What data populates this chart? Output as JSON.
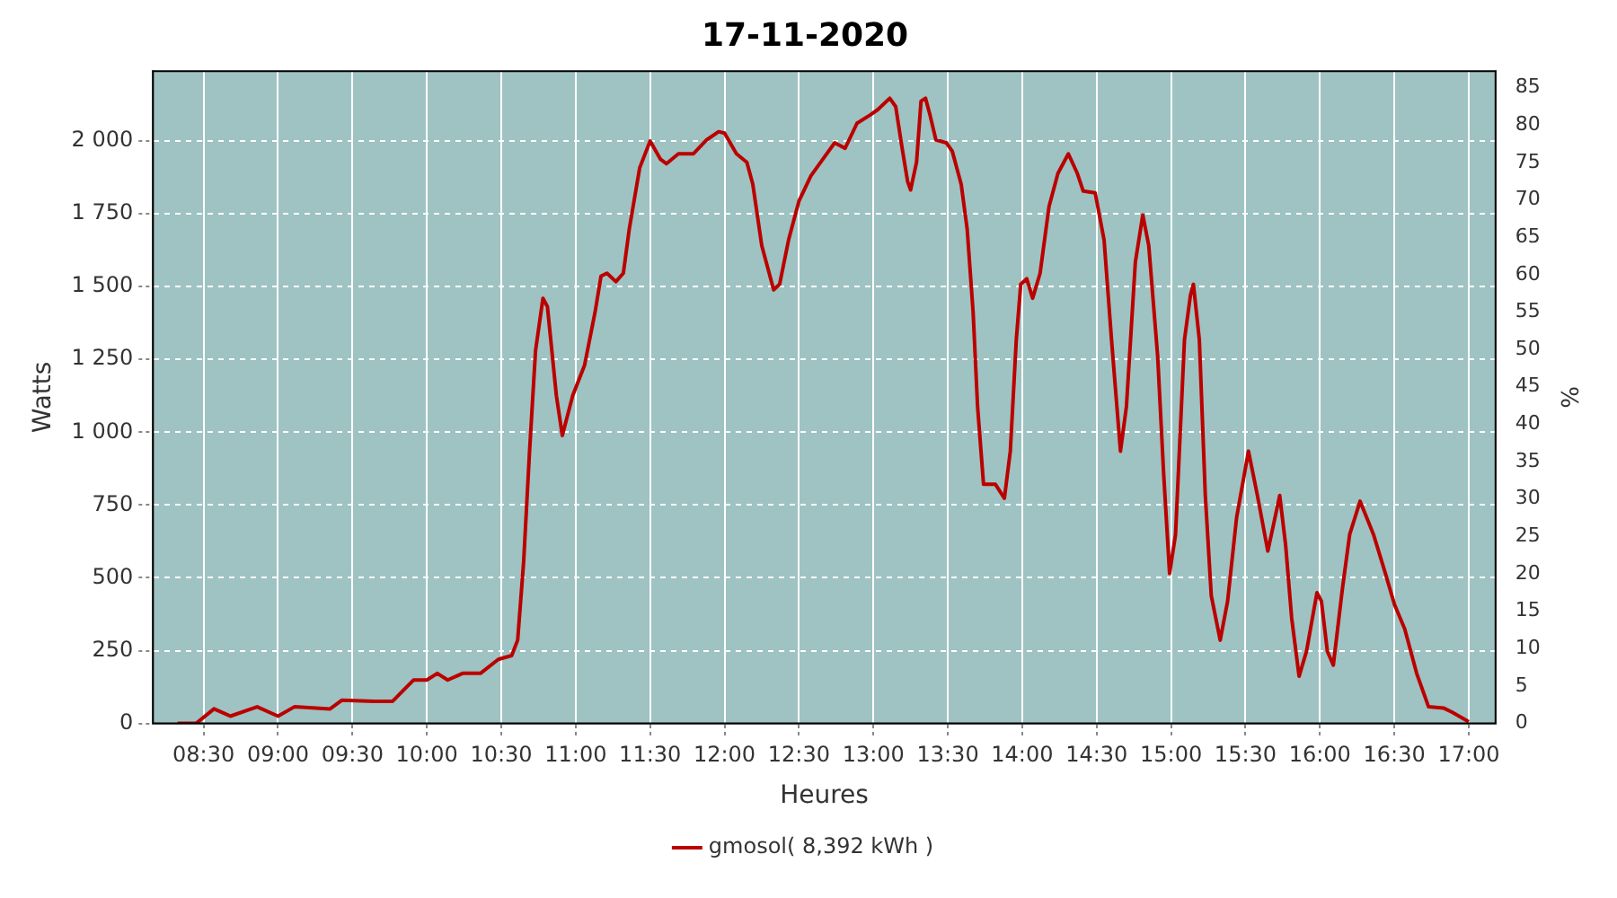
{
  "chart_data": {
    "type": "line",
    "title": "17-11-2020",
    "xlabel": "Heures",
    "ylabel": "Watts",
    "y2label": "%",
    "xlim": [
      8.16,
      17.18
    ],
    "xticks": [
      {
        "value": 8.5,
        "label": "08:30"
      },
      {
        "value": 9,
        "label": "09:00"
      },
      {
        "value": 9.5,
        "label": "09:30"
      },
      {
        "value": 10,
        "label": "10:00"
      },
      {
        "value": 10.5,
        "label": "10:30"
      },
      {
        "value": 11,
        "label": "11:00"
      },
      {
        "value": 11.5,
        "label": "11:30"
      },
      {
        "value": 12,
        "label": "12:00"
      },
      {
        "value": 12.5,
        "label": "12:30"
      },
      {
        "value": 13,
        "label": "13:00"
      },
      {
        "value": 13.5,
        "label": "13:30"
      },
      {
        "value": 14,
        "label": "14:00"
      },
      {
        "value": 14.5,
        "label": "14:30"
      },
      {
        "value": 15,
        "label": "15:00"
      },
      {
        "value": 15.5,
        "label": "15:30"
      },
      {
        "value": 16,
        "label": "16:00"
      },
      {
        "value": 16.5,
        "label": "16:30"
      },
      {
        "value": 17,
        "label": "17:00"
      }
    ],
    "ylim": [
      0,
      2240
    ],
    "yticks": [
      0,
      250,
      500,
      750,
      {
        "value": 1000,
        "label": "1 000"
      },
      {
        "value": 1250,
        "label": "1 250"
      },
      {
        "value": 1500,
        "label": "1 500"
      },
      {
        "value": 1750,
        "label": "1 750"
      },
      {
        "value": 2000,
        "label": "2 000"
      }
    ],
    "y2lim": [
      0,
      87.2
    ],
    "y2ticks": [
      0,
      5,
      10,
      15,
      20,
      25,
      30,
      35,
      40,
      45,
      50,
      55,
      60,
      65,
      70,
      75,
      80,
      85
    ],
    "grid": true,
    "legend": "bottom",
    "line_style": "solid",
    "marker": "none",
    "series": [
      {
        "name": "gmosol( 8,392 kWh )",
        "color": "#bb0000",
        "x": [
          8.325,
          8.45,
          8.57,
          8.68,
          8.86,
          9.0,
          9.11,
          9.35,
          9.43,
          9.65,
          9.77,
          9.91,
          10.0,
          10.07,
          10.14,
          10.24,
          10.36,
          10.48,
          10.57,
          10.61,
          10.65,
          10.69,
          10.73,
          10.78,
          10.81,
          10.87,
          10.91,
          10.98,
          11.06,
          11.13,
          11.17,
          11.21,
          11.27,
          11.32,
          11.36,
          11.43,
          11.5,
          11.57,
          11.61,
          11.69,
          11.79,
          11.88,
          11.96,
          12.0,
          12.08,
          12.15,
          12.19,
          12.25,
          12.33,
          12.37,
          12.43,
          12.5,
          12.58,
          12.66,
          12.74,
          12.81,
          12.89,
          12.98,
          13.03,
          13.11,
          13.15,
          13.19,
          13.23,
          13.25,
          13.29,
          13.32,
          13.35,
          13.38,
          13.42,
          13.49,
          13.53,
          13.59,
          13.63,
          13.67,
          13.7,
          13.74,
          13.82,
          13.88,
          13.92,
          13.96,
          13.99,
          14.03,
          14.07,
          14.12,
          14.18,
          14.24,
          14.31,
          14.37,
          14.41,
          14.49,
          14.55,
          14.6,
          14.66,
          14.7,
          14.76,
          14.81,
          14.85,
          14.91,
          14.95,
          14.99,
          15.03,
          15.09,
          15.13,
          15.15,
          15.19,
          15.23,
          15.27,
          15.33,
          15.38,
          15.44,
          15.52,
          15.58,
          15.65,
          15.69,
          15.73,
          15.77,
          15.81,
          15.86,
          15.91,
          15.98,
          16.01,
          16.05,
          16.09,
          16.15,
          16.2,
          16.27,
          16.36,
          16.44,
          16.5,
          16.57,
          16.65,
          16.73,
          16.83,
          16.89,
          17.0
        ],
        "values": [
          0,
          0,
          50,
          25,
          57,
          25,
          57,
          50,
          80,
          76,
          76,
          149,
          149,
          172,
          149,
          172,
          172,
          220,
          233,
          286,
          553,
          935,
          1279,
          1460,
          1431,
          1126,
          989,
          1126,
          1231,
          1412,
          1536,
          1546,
          1517,
          1546,
          1698,
          1908,
          2000,
          1937,
          1922,
          1956,
          1956,
          2004,
          2032,
          2027,
          1956,
          1927,
          1851,
          1641,
          1489,
          1508,
          1660,
          1794,
          1880,
          1937,
          1994,
          1975,
          2061,
          2090,
          2108,
          2147,
          2118,
          1985,
          1861,
          1832,
          1927,
          2137,
          2147,
          2090,
          2004,
          1994,
          1965,
          1851,
          1698,
          1412,
          1088,
          821,
          821,
          773,
          935,
          1317,
          1508,
          1527,
          1460,
          1546,
          1775,
          1889,
          1956,
          1889,
          1828,
          1822,
          1660,
          1317,
          935,
          1088,
          1584,
          1746,
          1641,
          1260,
          859,
          515,
          649,
          1317,
          1470,
          1508,
          1317,
          783,
          439,
          286,
          420,
          706,
          935,
          783,
          592,
          687,
          783,
          611,
          363,
          162,
          248,
          449,
          420,
          248,
          200,
          458,
          649,
          763,
          649,
          515,
          410,
          324,
          172,
          57,
          53,
          38,
          6
        ]
      }
    ]
  }
}
